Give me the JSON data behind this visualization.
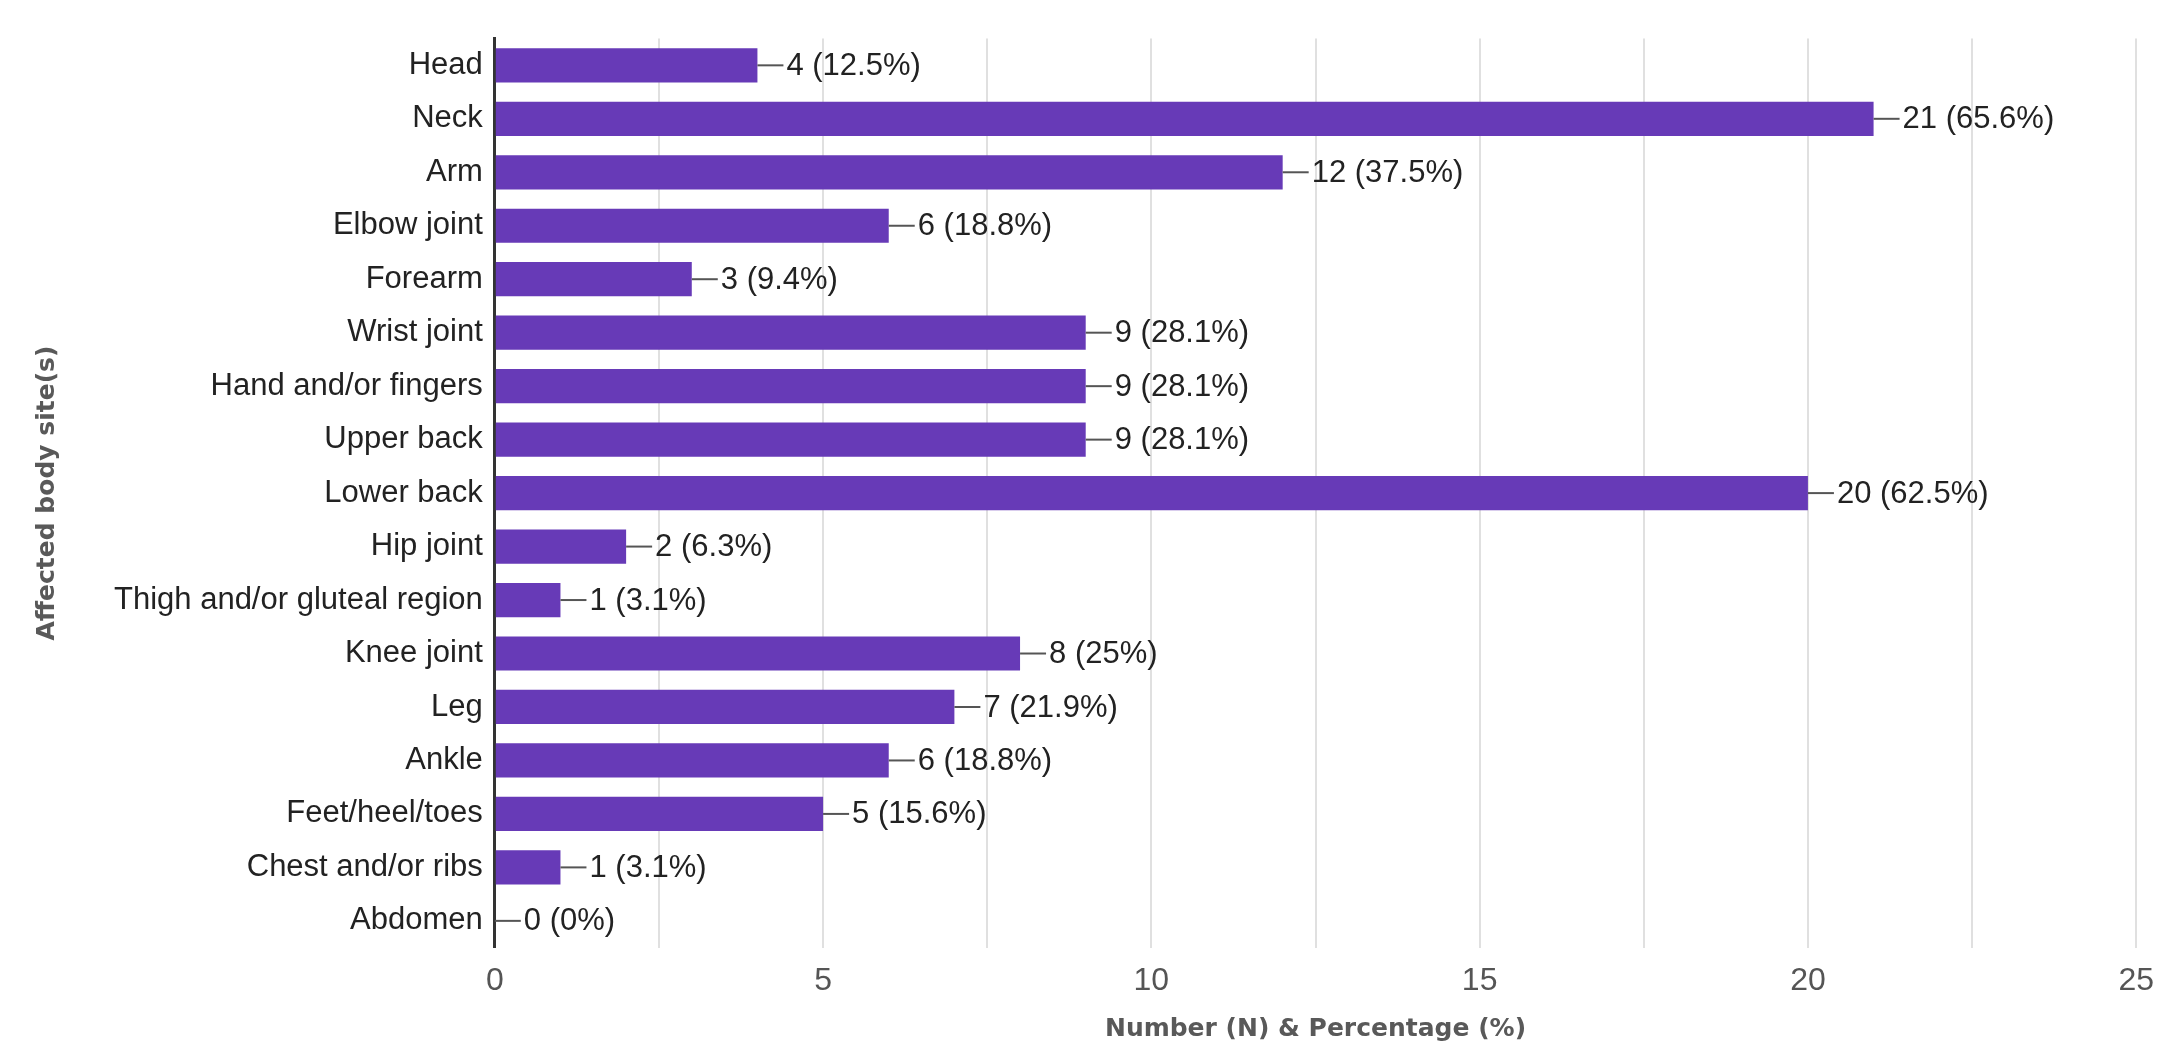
{
  "chart_data": {
    "type": "bar",
    "orientation": "horizontal",
    "xlabel": "Number (N) & Percentage (%)",
    "ylabel": "Affected body site(s)",
    "categories": [
      "Head",
      "Neck",
      "Arm",
      "Elbow joint",
      "Forearm",
      "Wrist joint",
      "Hand and/or fingers",
      "Upper back",
      "Lower back",
      "Hip joint",
      "Thigh and/or gluteal region",
      "Knee joint",
      "Leg",
      "Ankle",
      "Feet/heel/toes",
      "Chest and/or ribs",
      "Abdomen"
    ],
    "values": [
      4,
      21,
      12,
      6,
      3,
      9,
      9,
      9,
      20,
      2,
      1,
      8,
      7,
      6,
      5,
      1,
      0
    ],
    "value_labels": [
      "4 (12.5%)",
      "21 (65.6%)",
      "12 (37.5%)",
      "6 (18.8%)",
      "3 (9.4%)",
      "9 (28.1%)",
      "9 (28.1%)",
      "9 (28.1%)",
      "20 (62.5%)",
      "2 (6.3%)",
      "1 (3.1%)",
      "8 (25%)",
      "7 (21.9%)",
      "6 (18.8%)",
      "5 (15.6%)",
      "1 (3.1%)",
      "0 (0%)"
    ],
    "color": "#673ab7",
    "xlim": [
      0,
      25
    ],
    "xticks": [
      0,
      {
        "value": 2.5,
        "label": null
      },
      5,
      {
        "value": 7.5,
        "label": null
      },
      10,
      {
        "value": 12.5,
        "label": null
      },
      15,
      {
        "value": 17.5,
        "label": null
      },
      20,
      {
        "value": 22.5,
        "label": null
      },
      25
    ],
    "grid": "x",
    "legend": false
  }
}
